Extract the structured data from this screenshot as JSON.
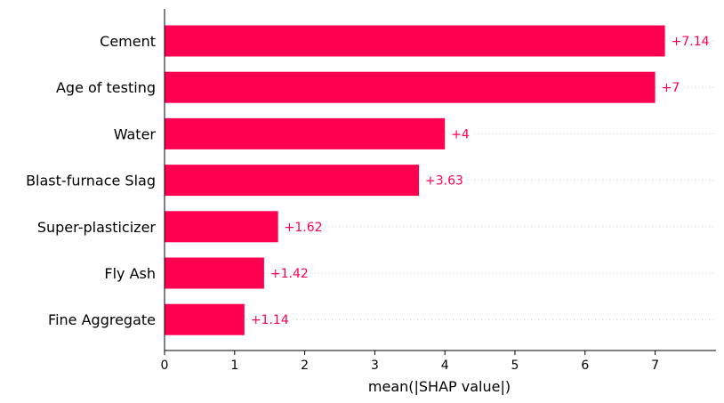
{
  "chart_data": {
    "type": "bar",
    "orientation": "horizontal",
    "categories": [
      "Cement",
      "Age of testing",
      "Water",
      "Blast-furnace Slag",
      "Super-plasticizer",
      "Fly Ash",
      "Fine Aggregate"
    ],
    "values": [
      7.14,
      7,
      4,
      3.63,
      1.62,
      1.42,
      1.14
    ],
    "value_labels": [
      "+7.14",
      "+7",
      "+4",
      "+3.63",
      "+1.62",
      "+1.42",
      "+1.14"
    ],
    "xlabel": "mean(|SHAP value|)",
    "xlim": [
      0,
      7.85
    ],
    "xticks": [
      0,
      1,
      2,
      3,
      4,
      5,
      6,
      7
    ],
    "grid": "dotted row guides",
    "colors": {
      "bar": "#ff0051",
      "label": "#ff0051",
      "axis": "#000000",
      "guide": "#cccccc"
    }
  }
}
